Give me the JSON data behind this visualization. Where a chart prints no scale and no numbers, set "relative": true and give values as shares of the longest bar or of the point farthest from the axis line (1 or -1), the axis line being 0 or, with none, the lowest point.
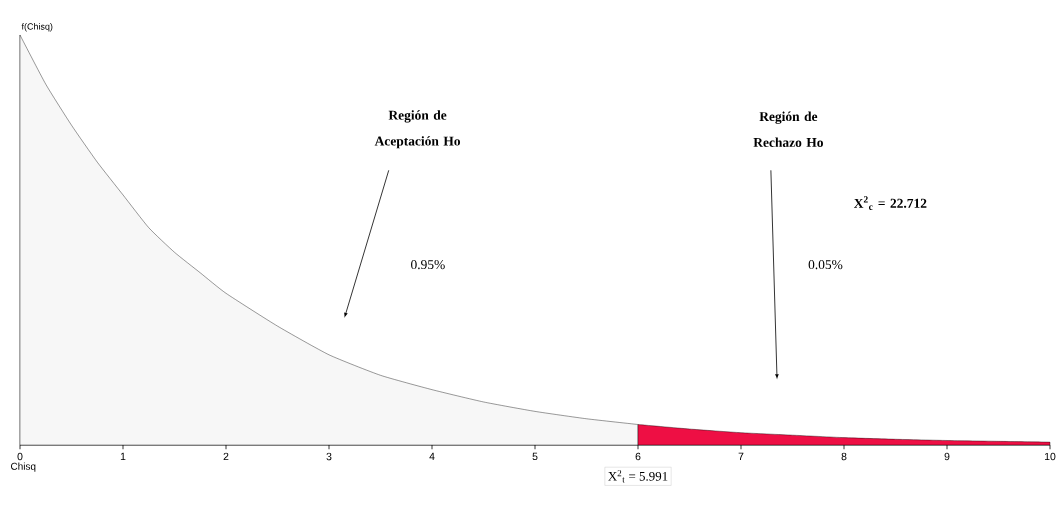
{
  "chart_data": {
    "type": "area",
    "relative": true,
    "xlabel": "Chisq",
    "ylabel": "f(Chisq)",
    "xlim": [
      0,
      10
    ],
    "xticks": [
      0,
      1,
      2,
      3,
      4,
      5,
      6,
      7,
      8,
      9,
      10
    ],
    "series": [
      {
        "color": "#f7f7f7",
        "x": [
          0,
          0.25,
          0.5,
          0.75,
          1,
          1.25,
          1.5,
          1.75,
          2,
          2.5,
          3,
          3.5,
          4,
          4.5,
          5,
          5.5,
          6
        ],
        "values": [
          1,
          0.88,
          0.78,
          0.69,
          0.61,
          0.53,
          0.47,
          0.42,
          0.37,
          0.29,
          0.22,
          0.17,
          0.135,
          0.105,
          0.082,
          0.064,
          0.05
        ]
      },
      {
        "color": "#ee0f44",
        "x": [
          6,
          6.5,
          7,
          7.5,
          8,
          8.5,
          9,
          9.5,
          10
        ],
        "values": [
          0.05,
          0.039,
          0.03,
          0.024,
          0.018,
          0.014,
          0.011,
          0.009,
          0.007
        ]
      }
    ],
    "annotations": [
      "Región de Aceptación Ho",
      "Región de Rechazo Ho",
      "X$^{2}$$_{c}$ = 22.712",
      "0.95%",
      "0.05%",
      "X$^{2}$$_{t}$ = 5.991"
    ]
  }
}
